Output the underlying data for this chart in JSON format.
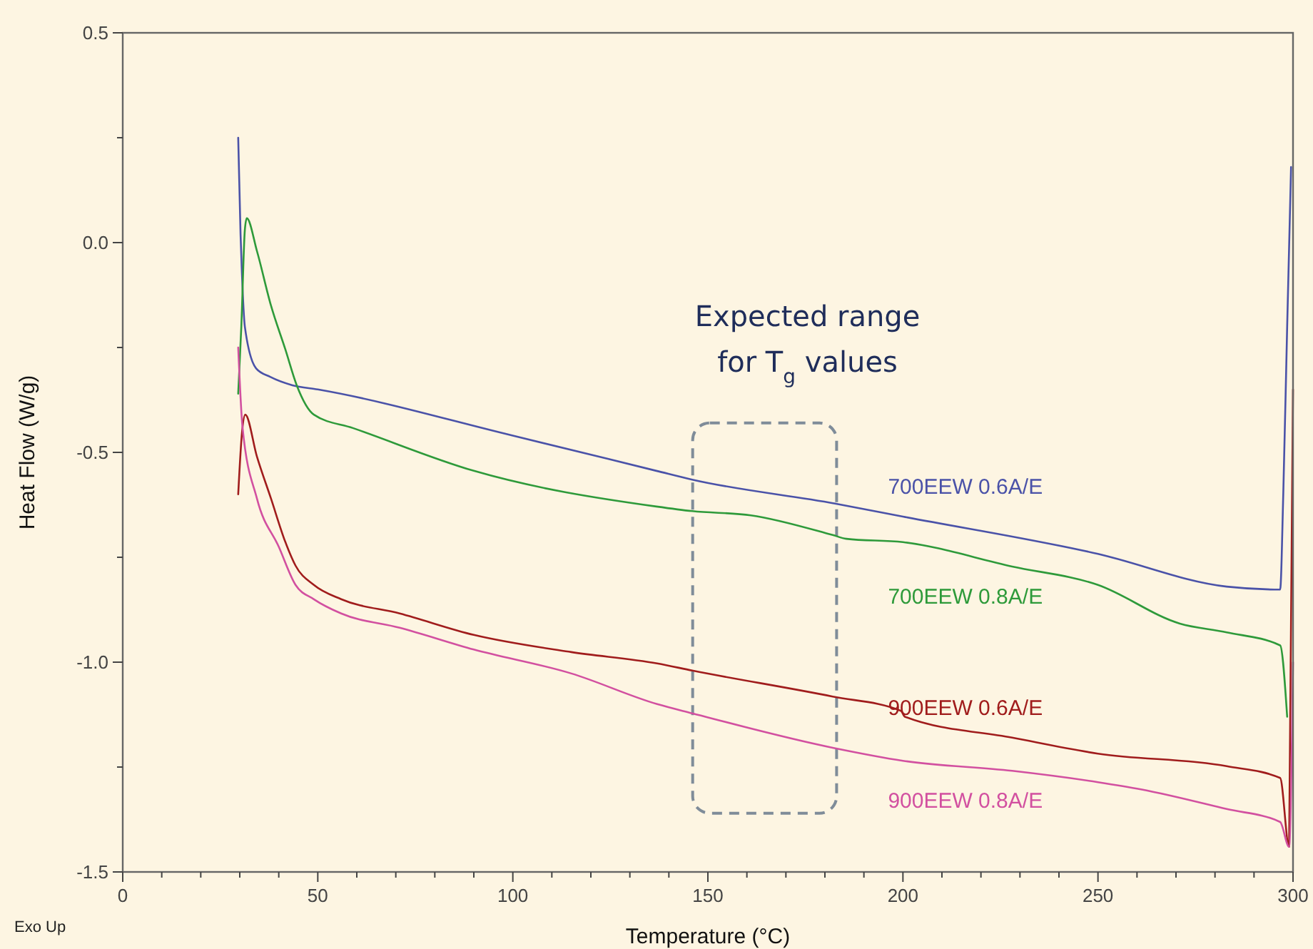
{
  "chart_data": {
    "type": "line",
    "xlabel": "Temperature (°C)",
    "ylabel": "Heat Flow (W/g)",
    "xlim": [
      0,
      300
    ],
    "ylim": [
      -1.5,
      0.5
    ],
    "xticks": [
      0,
      {
        "value": 10,
        "label": null
      },
      {
        "value": 20,
        "label": null
      },
      {
        "value": 30,
        "label": null
      },
      {
        "value": 40,
        "label": null
      },
      50,
      {
        "value": 60,
        "label": null
      },
      {
        "value": 70,
        "label": null
      },
      {
        "value": 80,
        "label": null
      },
      {
        "value": 90,
        "label": null
      },
      100,
      {
        "value": 110,
        "label": null
      },
      {
        "value": 120,
        "label": null
      },
      {
        "value": 130,
        "label": null
      },
      {
        "value": 140,
        "label": null
      },
      150,
      {
        "value": 160,
        "label": null
      },
      {
        "value": 170,
        "label": null
      },
      {
        "value": 180,
        "label": null
      },
      {
        "value": 190,
        "label": null
      },
      200,
      {
        "value": 210,
        "label": null
      },
      {
        "value": 220,
        "label": null
      },
      {
        "value": 230,
        "label": null
      },
      {
        "value": 240,
        "label": null
      },
      250,
      {
        "value": 260,
        "label": null
      },
      {
        "value": 270,
        "label": null
      },
      {
        "value": 280,
        "label": null
      },
      {
        "value": 290,
        "label": null
      },
      300
    ],
    "yticks": [
      {
        "value": -1.5,
        "label": "-1.5"
      },
      {
        "value": -1.25,
        "label": null
      },
      {
        "value": -1,
        "label": "-1.0"
      },
      {
        "value": -0.75,
        "label": null
      },
      {
        "value": -0.5,
        "label": "-0.5"
      },
      {
        "value": -0.25,
        "label": null
      },
      {
        "value": 0,
        "label": "0.0"
      },
      {
        "value": 0.25,
        "label": null
      },
      0.5
    ],
    "grid": false,
    "legend": false,
    "marker": "none",
    "line_style": "solid",
    "series": [
      {
        "name": "700EEW 0.6A/E",
        "color": "#4a52a8",
        "x": [
          29.6,
          30.2,
          30.5,
          31.3,
          34.2,
          37.8,
          43.5,
          50,
          100,
          136.8,
          146,
          182.6,
          200,
          250,
          283,
          296.7,
          297.5,
          298.5,
          299.5
        ],
        "values": [
          0.25,
          0.02,
          -0.06,
          -0.2,
          -0.3,
          -0.32,
          -0.34,
          -0.35,
          -0.46,
          -0.544,
          -0.565,
          -0.622,
          -0.653,
          -0.742,
          -0.82,
          -0.827,
          -0.6,
          -0.2,
          0.18
        ]
      },
      {
        "name": "700EEW 0.8A/E",
        "color": "#2e9a3a",
        "x": [
          29.6,
          30.4,
          31.3,
          31.8,
          34.4,
          38,
          41.7,
          44.6,
          49,
          59,
          90,
          136.8,
          146,
          161,
          182,
          185.5,
          200,
          228,
          250,
          271,
          283,
          296.7,
          298.5
        ],
        "values": [
          -0.36,
          -0.2,
          0.03,
          0.058,
          -0.02,
          -0.15,
          -0.255,
          -0.34,
          -0.41,
          -0.442,
          -0.544,
          -0.629,
          -0.64,
          -0.65,
          -0.697,
          -0.706,
          -0.714,
          -0.772,
          -0.816,
          -0.908,
          -0.929,
          -0.96,
          -1.13
        ]
      },
      {
        "name": "900EEW 0.6A/E",
        "color": "#a01c1c",
        "x": [
          29.6,
          30.6,
          31.4,
          34.4,
          38,
          41.7,
          44.3,
          49,
          56,
          71,
          90,
          115,
          137,
          146,
          182,
          199.5,
          200.5,
          228,
          250,
          283,
          296.7,
          299,
          300
        ],
        "values": [
          -0.6,
          -0.45,
          -0.41,
          -0.51,
          -0.61,
          -0.714,
          -0.77,
          -0.816,
          -0.85,
          -0.884,
          -0.935,
          -0.976,
          -1.003,
          -1.02,
          -1.082,
          -1.116,
          -1.13,
          -1.18,
          -1.218,
          -1.248,
          -1.276,
          -1.44,
          -0.35
        ]
      },
      {
        "name": "900EEW 0.8A/E",
        "color": "#d250a0",
        "x": [
          29.6,
          30.7,
          34.4,
          40,
          44.3,
          49,
          56,
          71,
          90,
          115,
          137,
          146,
          182,
          200,
          228,
          250,
          261,
          283,
          296.7,
          299,
          300
        ],
        "values": [
          -0.25,
          -0.44,
          -0.61,
          -0.725,
          -0.816,
          -0.85,
          -0.884,
          -0.918,
          -0.97,
          -1.027,
          -1.1,
          -1.122,
          -1.204,
          -1.235,
          -1.259,
          -1.286,
          -1.303,
          -1.35,
          -1.381,
          -1.44,
          -1.0
        ]
      }
    ],
    "annotations": [
      "Expected range for T$_{g}$ values",
      "Exo Up"
    ]
  }
}
